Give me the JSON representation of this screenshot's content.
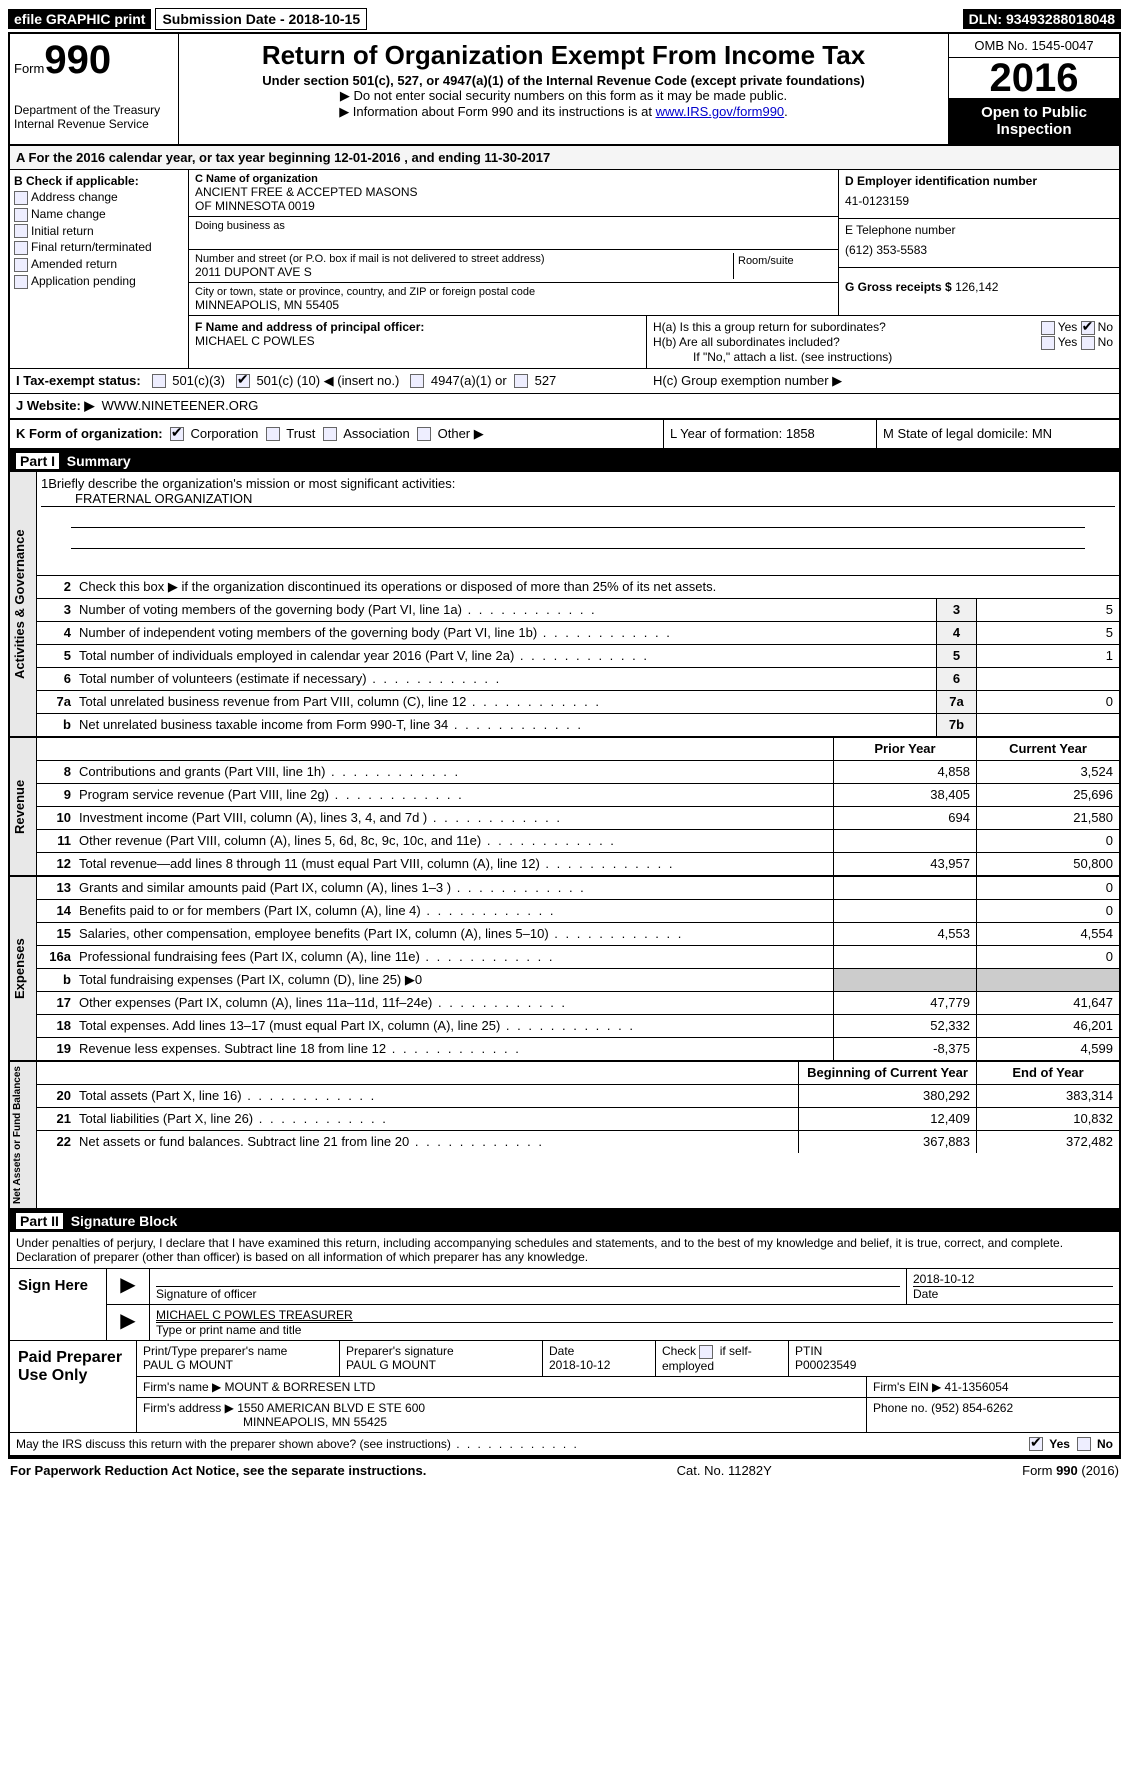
{
  "topbar": {
    "efile": "efile GRAPHIC print",
    "submission": "Submission Date - 2018-10-15",
    "dln": "DLN: 93493288018048"
  },
  "header": {
    "form_label": "Form",
    "form_num": "990",
    "dept": "Department of the Treasury",
    "irs": "Internal Revenue Service",
    "title": "Return of Organization Exempt From Income Tax",
    "subtitle": "Under section 501(c), 527, or 4947(a)(1) of the Internal Revenue Code (except private foundations)",
    "note1": "▶ Do not enter social security numbers on this form as it may be made public.",
    "note2_pre": "▶ Information about Form 990 and its instructions is at ",
    "note2_link": "www.IRS.gov/form990",
    "omb": "OMB No. 1545-0047",
    "year": "2016",
    "open": "Open to Public Inspection"
  },
  "sectionA": "A  For the 2016 calendar year, or tax year beginning 12-01-2016   , and ending 11-30-2017",
  "sectionB": {
    "title": "B Check if applicable:",
    "items": [
      "Address change",
      "Name change",
      "Initial return",
      "Final return/terminated",
      "Amended return",
      "Application pending"
    ]
  },
  "sectionC": {
    "name_label": "C Name of organization",
    "name1": "ANCIENT FREE & ACCEPTED MASONS",
    "name2": "OF MINNESOTA 0019",
    "dba_label": "Doing business as",
    "addr_label": "Number and street (or P.O. box if mail is not delivered to street address)",
    "addr": "2011 DUPONT AVE S",
    "room_label": "Room/suite",
    "city_label": "City or town, state or province, country, and ZIP or foreign postal code",
    "city": "MINNEAPOLIS, MN  55405"
  },
  "sectionD": {
    "ein_label": "D Employer identification number",
    "ein": "41-0123159",
    "tel_label": "E Telephone number",
    "tel": "(612) 353-5583",
    "gross_label": "G Gross receipts $",
    "gross": "126,142"
  },
  "sectionF": {
    "label": "F Name and address of principal officer:",
    "name": "MICHAEL C POWLES"
  },
  "sectionH": {
    "a": "H(a)  Is this a group return for subordinates?",
    "b": "H(b)  Are all subordinates included?",
    "b_note": "If \"No,\" attach a list. (see instructions)",
    "c": "H(c)  Group exemption number ▶"
  },
  "sectionI": {
    "label": "I  Tax-exempt status:",
    "opt1": "501(c)(3)",
    "opt2_pre": "501(c) (",
    "opt2_num": "10",
    "opt2_post": ") ◀ (insert no.)",
    "opt3": "4947(a)(1) or",
    "opt4": "527"
  },
  "sectionJ": {
    "label": "J  Website: ▶",
    "value": "WWW.NINETEENER.ORG"
  },
  "sectionK": {
    "label": "K Form of organization:",
    "opts": [
      "Corporation",
      "Trust",
      "Association",
      "Other ▶"
    ],
    "L": "L Year of formation: 1858",
    "M": "M State of legal domicile: MN"
  },
  "part1": {
    "title": "Part I",
    "subtitle": "Summary",
    "line1": "Briefly describe the organization's mission or most significant activities:",
    "mission": "FRATERNAL ORGANIZATION",
    "line2": "Check this box ▶         if the organization discontinued its operations or disposed of more than 25% of its net assets.",
    "rows_gov": [
      {
        "n": "3",
        "d": "Number of voting members of the governing body (Part VI, line 1a)",
        "box": "3",
        "v": "5"
      },
      {
        "n": "4",
        "d": "Number of independent voting members of the governing body (Part VI, line 1b)",
        "box": "4",
        "v": "5"
      },
      {
        "n": "5",
        "d": "Total number of individuals employed in calendar year 2016 (Part V, line 2a)",
        "box": "5",
        "v": "1"
      },
      {
        "n": "6",
        "d": "Total number of volunteers (estimate if necessary)",
        "box": "6",
        "v": ""
      },
      {
        "n": "7a",
        "d": "Total unrelated business revenue from Part VIII, column (C), line 12",
        "box": "7a",
        "v": "0"
      },
      {
        "n": "b",
        "d": "Net unrelated business taxable income from Form 990-T, line 34",
        "box": "7b",
        "v": ""
      }
    ],
    "header_prior": "Prior Year",
    "header_current": "Current Year",
    "rows_rev": [
      {
        "n": "8",
        "d": "Contributions and grants (Part VIII, line 1h)",
        "p": "4,858",
        "c": "3,524"
      },
      {
        "n": "9",
        "d": "Program service revenue (Part VIII, line 2g)",
        "p": "38,405",
        "c": "25,696"
      },
      {
        "n": "10",
        "d": "Investment income (Part VIII, column (A), lines 3, 4, and 7d )",
        "p": "694",
        "c": "21,580"
      },
      {
        "n": "11",
        "d": "Other revenue (Part VIII, column (A), lines 5, 6d, 8c, 9c, 10c, and 11e)",
        "p": "",
        "c": "0"
      },
      {
        "n": "12",
        "d": "Total revenue—add lines 8 through 11 (must equal Part VIII, column (A), line 12)",
        "p": "43,957",
        "c": "50,800"
      }
    ],
    "rows_exp": [
      {
        "n": "13",
        "d": "Grants and similar amounts paid (Part IX, column (A), lines 1–3 )",
        "p": "",
        "c": "0"
      },
      {
        "n": "14",
        "d": "Benefits paid to or for members (Part IX, column (A), line 4)",
        "p": "",
        "c": "0"
      },
      {
        "n": "15",
        "d": "Salaries, other compensation, employee benefits (Part IX, column (A), lines 5–10)",
        "p": "4,553",
        "c": "4,554"
      },
      {
        "n": "16a",
        "d": "Professional fundraising fees (Part IX, column (A), line 11e)",
        "p": "",
        "c": "0"
      },
      {
        "n": "b",
        "d": "Total fundraising expenses (Part IX, column (D), line 25) ▶0",
        "p": "shaded",
        "c": "shaded"
      },
      {
        "n": "17",
        "d": "Other expenses (Part IX, column (A), lines 11a–11d, 11f–24e)",
        "p": "47,779",
        "c": "41,647"
      },
      {
        "n": "18",
        "d": "Total expenses. Add lines 13–17 (must equal Part IX, column (A), line 25)",
        "p": "52,332",
        "c": "46,201"
      },
      {
        "n": "19",
        "d": "Revenue less expenses. Subtract line 18 from line 12",
        "p": "-8,375",
        "c": "4,599"
      }
    ],
    "header_begin": "Beginning of Current Year",
    "header_end": "End of Year",
    "rows_net": [
      {
        "n": "20",
        "d": "Total assets (Part X, line 16)",
        "p": "380,292",
        "c": "383,314"
      },
      {
        "n": "21",
        "d": "Total liabilities (Part X, line 26)",
        "p": "12,409",
        "c": "10,832"
      },
      {
        "n": "22",
        "d": "Net assets or fund balances. Subtract line 21 from line 20",
        "p": "367,883",
        "c": "372,482"
      }
    ],
    "vert_gov": "Activities & Governance",
    "vert_rev": "Revenue",
    "vert_exp": "Expenses",
    "vert_net": "Net Assets or Fund Balances"
  },
  "part2": {
    "title": "Part II",
    "subtitle": "Signature Block",
    "intro": "Under penalties of perjury, I declare that I have examined this return, including accompanying schedules and statements, and to the best of my knowledge and belief, it is true, correct, and complete. Declaration of preparer (other than officer) is based on all information of which preparer has any knowledge.",
    "sign_here": "Sign Here",
    "sig_officer": "Signature of officer",
    "sig_date": "2018-10-12",
    "date_label": "Date",
    "officer_name": "MICHAEL C POWLES TREASURER",
    "type_name": "Type or print name and title",
    "paid": "Paid Preparer Use Only",
    "prep_name_label": "Print/Type preparer's name",
    "prep_name": "PAUL G MOUNT",
    "prep_sig_label": "Preparer's signature",
    "prep_sig": "PAUL G MOUNT",
    "prep_date_label": "Date",
    "prep_date": "2018-10-12",
    "self_emp": "Check        if self-employed",
    "ptin_label": "PTIN",
    "ptin": "P00023549",
    "firm_name_label": "Firm's name     ▶",
    "firm_name": "MOUNT & BORRESEN LTD",
    "firm_ein_label": "Firm's EIN ▶",
    "firm_ein": "41-1356054",
    "firm_addr_label": "Firm's address ▶",
    "firm_addr": "1550 AMERICAN BLVD E STE 600",
    "firm_city": "MINNEAPOLIS, MN  55425",
    "phone_label": "Phone no.",
    "phone": "(952) 854-6262",
    "discuss": "May the IRS discuss this return with the preparer shown above? (see instructions)"
  },
  "footer": {
    "left": "For Paperwork Reduction Act Notice, see the separate instructions.",
    "mid": "Cat. No. 11282Y",
    "right": "Form 990 (2016)"
  }
}
